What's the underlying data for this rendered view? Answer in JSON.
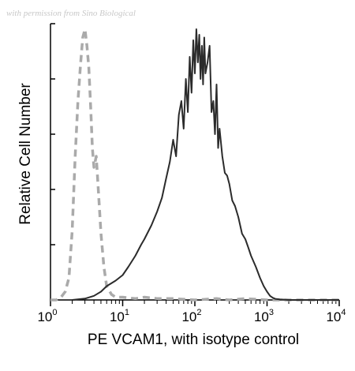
{
  "watermark": "with permission from Sino Biological",
  "chart_data": {
    "type": "line",
    "title": "",
    "xlabel": "PE VCAM1, with isotype control",
    "ylabel": "Relative Cell Number",
    "x_scale": "log",
    "xlim": [
      1,
      10000
    ],
    "ylim": [
      0,
      100
    ],
    "grid": false,
    "x_ticks": [
      {
        "value": 1,
        "base": "10",
        "exp": "0"
      },
      {
        "value": 10,
        "base": "10",
        "exp": "1"
      },
      {
        "value": 100,
        "base": "10",
        "exp": "2"
      },
      {
        "value": 1000,
        "base": "10",
        "exp": "3"
      },
      {
        "value": 10000,
        "base": "10",
        "exp": "4"
      }
    ],
    "series": [
      {
        "style": "dashed",
        "color": "#aaaaaa",
        "x": [
          1.0,
          1.2,
          1.4,
          1.6,
          1.8,
          2.0,
          2.2,
          2.4,
          2.6,
          2.8,
          3.0,
          3.2,
          3.4,
          3.6,
          3.8,
          4.0,
          4.3,
          4.6,
          5.0,
          5.5,
          6.0,
          7.0,
          8.0,
          10,
          15,
          20,
          30,
          50,
          100,
          200,
          300,
          500,
          1000,
          2000,
          5000,
          10000
        ],
        "y": [
          0,
          0,
          1,
          3,
          8,
          25,
          52,
          72,
          85,
          95,
          98,
          92,
          84,
          70,
          55,
          48,
          52,
          40,
          24,
          12,
          5,
          2,
          1,
          1,
          0.5,
          1,
          0.5,
          0.5,
          0,
          0.5,
          0,
          0.5,
          0,
          0,
          0,
          0
        ]
      },
      {
        "style": "solid",
        "color": "#2b2b2b",
        "x": [
          2.0,
          3.0,
          4.0,
          5.0,
          6.0,
          8.0,
          10,
          12,
          15,
          18,
          20,
          25,
          30,
          35,
          40,
          45,
          50,
          55,
          60,
          65,
          70,
          75,
          80,
          85,
          90,
          95,
          100,
          105,
          110,
          115,
          120,
          125,
          130,
          135,
          140,
          150,
          160,
          170,
          180,
          190,
          200,
          210,
          220,
          240,
          260,
          280,
          300,
          330,
          360,
          400,
          450,
          500,
          550,
          600,
          700,
          800,
          900,
          1000,
          1100,
          1200,
          1300,
          1500,
          2000,
          3000,
          5000,
          10000
        ],
        "y": [
          0,
          0.5,
          1.5,
          3,
          5,
          7,
          9,
          12,
          16,
          20,
          22,
          27,
          32,
          37,
          44,
          50,
          58,
          52,
          67,
          72,
          62,
          80,
          68,
          88,
          75,
          94,
          82,
          98,
          86,
          96,
          80,
          92,
          78,
          95,
          82,
          86,
          92,
          68,
          72,
          60,
          78,
          55,
          62,
          52,
          46,
          45,
          42,
          36,
          34,
          30,
          24,
          22,
          19,
          16,
          12,
          8,
          5,
          3,
          1.5,
          0.8,
          0.4,
          0.2,
          0,
          0,
          0,
          0
        ]
      }
    ]
  }
}
